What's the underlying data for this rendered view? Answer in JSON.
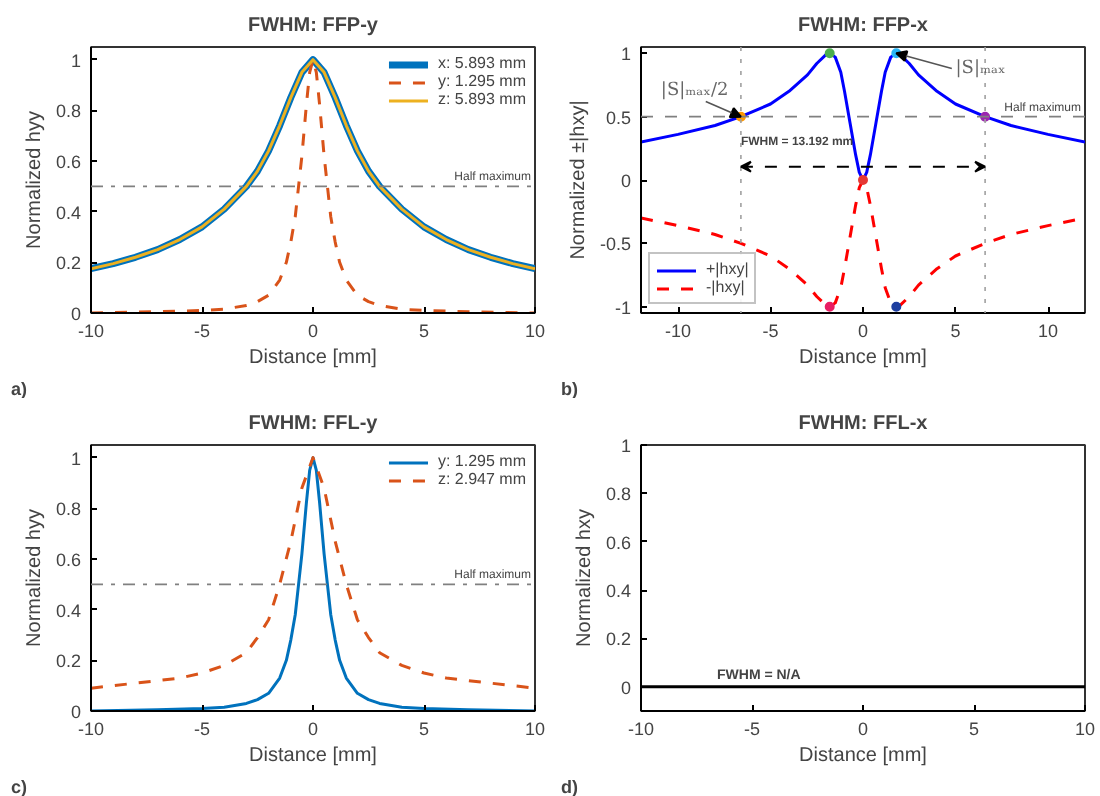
{
  "chart_data": [
    {
      "type": "line",
      "title": "FWHM: FFP-y",
      "xlabel": "Distance [mm]",
      "ylabel": "Normalized hyy",
      "xlim": [
        -10,
        10
      ],
      "ylim": [
        0,
        1.05
      ],
      "xticks": [
        -10,
        -5,
        0,
        5,
        10
      ],
      "yticks": [
        0,
        0.2,
        0.4,
        0.6,
        0.8,
        1
      ],
      "grid": false,
      "legend": "top right",
      "marker": "none",
      "series": [
        {
          "name": "x: 5.893 mm",
          "color": "#0072bd",
          "line_style": "solid",
          "x": [
            -10,
            -9,
            -8,
            -7,
            -6,
            -5,
            -4,
            -3,
            -2.5,
            -2,
            -1.5,
            -1,
            -0.5,
            0,
            0.5,
            1,
            1.5,
            2,
            2.5,
            3,
            4,
            5,
            6,
            7,
            8,
            9,
            10
          ],
          "values": [
            0.175,
            0.195,
            0.22,
            0.25,
            0.29,
            0.34,
            0.41,
            0.5,
            0.56,
            0.64,
            0.74,
            0.85,
            0.95,
            1,
            0.95,
            0.85,
            0.74,
            0.64,
            0.56,
            0.5,
            0.41,
            0.34,
            0.29,
            0.25,
            0.22,
            0.195,
            0.175
          ]
        },
        {
          "name": "y: 1.295 mm",
          "color": "#d95319",
          "line_style": "dashed",
          "x": [
            -10,
            -7,
            -5,
            -4,
            -3,
            -2.5,
            -2,
            -1.5,
            -1.2,
            -1,
            -0.8,
            -0.65,
            -0.5,
            -0.3,
            -0.15,
            0,
            0.15,
            0.3,
            0.5,
            0.65,
            0.8,
            1,
            1.2,
            1.5,
            2,
            2.5,
            3,
            4,
            5,
            7,
            10
          ],
          "values": [
            0,
            0.005,
            0.01,
            0.015,
            0.03,
            0.045,
            0.07,
            0.13,
            0.2,
            0.28,
            0.38,
            0.5,
            0.62,
            0.82,
            0.95,
            1,
            0.95,
            0.82,
            0.62,
            0.5,
            0.38,
            0.28,
            0.2,
            0.13,
            0.07,
            0.045,
            0.03,
            0.015,
            0.01,
            0.005,
            0
          ]
        },
        {
          "name": "z: 5.893 mm",
          "color": "#edb120",
          "line_style": "solid",
          "x": [
            -10,
            -9,
            -8,
            -7,
            -6,
            -5,
            -4,
            -3,
            -2.5,
            -2,
            -1.5,
            -1,
            -0.5,
            0,
            0.5,
            1,
            1.5,
            2,
            2.5,
            3,
            4,
            5,
            6,
            7,
            8,
            9,
            10
          ],
          "values": [
            0.175,
            0.195,
            0.22,
            0.25,
            0.29,
            0.34,
            0.41,
            0.5,
            0.56,
            0.64,
            0.74,
            0.85,
            0.95,
            1,
            0.95,
            0.85,
            0.74,
            0.64,
            0.56,
            0.5,
            0.41,
            0.34,
            0.29,
            0.25,
            0.22,
            0.195,
            0.175
          ]
        }
      ],
      "ref_lines": [
        {
          "axis": "y",
          "value": 0.5,
          "label": "Half maximum",
          "color": "#808080",
          "line_style": "dashdot"
        }
      ],
      "annotations": [
        "a)"
      ]
    },
    {
      "type": "line",
      "title": "FWHM: FFP-x",
      "xlabel": "Distance [mm]",
      "ylabel": "Normalized ±|hxy|",
      "xlim": [
        -12,
        12
      ],
      "ylim": [
        -1.05,
        1.05
      ],
      "xticks": [
        -10,
        -5,
        0,
        5,
        10
      ],
      "yticks": [
        -1,
        -0.5,
        0,
        0.5,
        1
      ],
      "grid": false,
      "legend": "bottom left",
      "marker": "none",
      "series": [
        {
          "name": "+|hxy|",
          "color": "#0000ff",
          "line_style": "solid",
          "x": [
            -12,
            -10,
            -8,
            -6.6,
            -5,
            -4,
            -3,
            -2.5,
            -2,
            -1.8,
            -1.5,
            -1.2,
            -1,
            -0.7,
            -0.4,
            -0.2,
            0,
            0.2,
            0.4,
            0.7,
            1,
            1.2,
            1.5,
            1.8,
            2,
            2.5,
            3,
            4,
            5,
            6.6,
            8,
            10,
            12
          ],
          "values": [
            0.3,
            0.36,
            0.43,
            0.5,
            0.6,
            0.7,
            0.83,
            0.92,
            0.99,
            1,
            0.97,
            0.85,
            0.7,
            0.45,
            0.2,
            0.06,
            0,
            0.06,
            0.2,
            0.45,
            0.7,
            0.85,
            0.97,
            1,
            0.99,
            0.92,
            0.83,
            0.7,
            0.6,
            0.5,
            0.43,
            0.36,
            0.3
          ]
        },
        {
          "name": "-|hxy|",
          "color": "#ff0000",
          "line_style": "dashed",
          "x": [
            -12,
            -10,
            -8,
            -6.6,
            -5,
            -4,
            -3,
            -2.5,
            -2,
            -1.8,
            -1.5,
            -1.2,
            -1,
            -0.7,
            -0.4,
            -0.2,
            0,
            0.2,
            0.4,
            0.7,
            1,
            1.2,
            1.5,
            1.8,
            2,
            2.5,
            3,
            4,
            5,
            6.6,
            8,
            10,
            12
          ],
          "values": [
            -0.3,
            -0.36,
            -0.43,
            -0.5,
            -0.6,
            -0.7,
            -0.83,
            -0.92,
            -0.99,
            -1,
            -0.97,
            -0.85,
            -0.7,
            -0.45,
            -0.2,
            -0.06,
            0,
            -0.06,
            -0.2,
            -0.45,
            -0.7,
            -0.85,
            -0.97,
            -1,
            -0.99,
            -0.92,
            -0.83,
            -0.7,
            -0.6,
            -0.5,
            -0.43,
            -0.36,
            -0.3
          ]
        },
        {
          "type": "scatter",
          "marker": "circle",
          "x": [
            -1.8,
            1.8,
            -6.6,
            6.6,
            -1.8,
            1.8,
            0
          ],
          "values": [
            1,
            1,
            0.5,
            0.5,
            -1,
            -1,
            0
          ],
          "colors": [
            "#4caf50",
            "#29b6f6",
            "#ff9800",
            "#9c27b0",
            "#e91e63",
            "#1e3fa0",
            "#e53935"
          ]
        }
      ],
      "ref_lines": [
        {
          "axis": "y",
          "value": 0.5,
          "label": "Half maximum",
          "color": "#808080",
          "line_style": "dashed"
        },
        {
          "axis": "x",
          "value": -6.6,
          "label": null,
          "color": "#a0a0a0",
          "line_style": "dotted"
        },
        {
          "axis": "x",
          "value": 6.6,
          "label": null,
          "color": "#a0a0a0",
          "line_style": "dotted"
        }
      ],
      "annotations": [
        "b)",
        {
          "text": "|S|ₘₐₓ",
          "x": 1.8,
          "y": 1
        },
        {
          "text": "|S|ₘₐₓ/2",
          "x": -6.6,
          "y": 0.5
        },
        "FWHM = 13.192 mm"
      ]
    },
    {
      "type": "line",
      "title": "FWHM: FFL-y",
      "xlabel": "Distance [mm]",
      "ylabel": "Normalized hyy",
      "xlim": [
        -10,
        10
      ],
      "ylim": [
        0,
        1.05
      ],
      "xticks": [
        -10,
        -5,
        0,
        5,
        10
      ],
      "yticks": [
        0,
        0.2,
        0.4,
        0.6,
        0.8,
        1
      ],
      "grid": false,
      "legend": "top right",
      "marker": "none",
      "series": [
        {
          "name": "y: 1.295 mm",
          "color": "#0072bd",
          "line_style": "solid",
          "x": [
            -10,
            -7,
            -5,
            -4,
            -3,
            -2.5,
            -2,
            -1.5,
            -1.2,
            -1,
            -0.8,
            -0.65,
            -0.5,
            -0.3,
            -0.15,
            0,
            0.15,
            0.3,
            0.5,
            0.65,
            0.8,
            1,
            1.2,
            1.5,
            2,
            2.5,
            3,
            4,
            5,
            7,
            10
          ],
          "values": [
            0,
            0.005,
            0.01,
            0.015,
            0.03,
            0.045,
            0.07,
            0.13,
            0.2,
            0.28,
            0.38,
            0.5,
            0.62,
            0.82,
            0.95,
            1,
            0.95,
            0.82,
            0.62,
            0.5,
            0.38,
            0.28,
            0.2,
            0.13,
            0.07,
            0.045,
            0.03,
            0.015,
            0.01,
            0.005,
            0
          ]
        },
        {
          "name": "z: 2.947 mm",
          "color": "#d95319",
          "line_style": "dashed",
          "x": [
            -10,
            -8,
            -7,
            -6,
            -5,
            -4,
            -3,
            -2.5,
            -2,
            -1.5,
            -1,
            -0.5,
            0,
            0.5,
            1,
            1.5,
            2,
            2.5,
            3,
            4,
            5,
            6,
            7,
            8,
            10
          ],
          "values": [
            0.09,
            0.11,
            0.12,
            0.13,
            0.15,
            0.18,
            0.23,
            0.29,
            0.36,
            0.5,
            0.67,
            0.88,
            1,
            0.88,
            0.67,
            0.5,
            0.36,
            0.29,
            0.23,
            0.18,
            0.15,
            0.13,
            0.12,
            0.11,
            0.09
          ]
        }
      ],
      "ref_lines": [
        {
          "axis": "y",
          "value": 0.5,
          "label": "Half maximum",
          "color": "#808080",
          "line_style": "dashdot"
        }
      ],
      "annotations": [
        "c)"
      ]
    },
    {
      "type": "line",
      "title": "FWHM: FFL-x",
      "xlabel": "Distance [mm]",
      "ylabel": "Normalized hxy",
      "xlim": [
        -10,
        10
      ],
      "ylim": [
        -0.1,
        1
      ],
      "xticks": [
        -10,
        -5,
        0,
        5,
        10
      ],
      "yticks": [
        0,
        0.2,
        0.4,
        0.6,
        0.8,
        1
      ],
      "grid": false,
      "marker": "none",
      "series": [
        {
          "color": "#000000",
          "line_style": "solid",
          "x": [
            -10,
            10
          ],
          "values": [
            0,
            0
          ]
        }
      ],
      "annotations": [
        "d)",
        "FWHM = N/A"
      ]
    }
  ]
}
